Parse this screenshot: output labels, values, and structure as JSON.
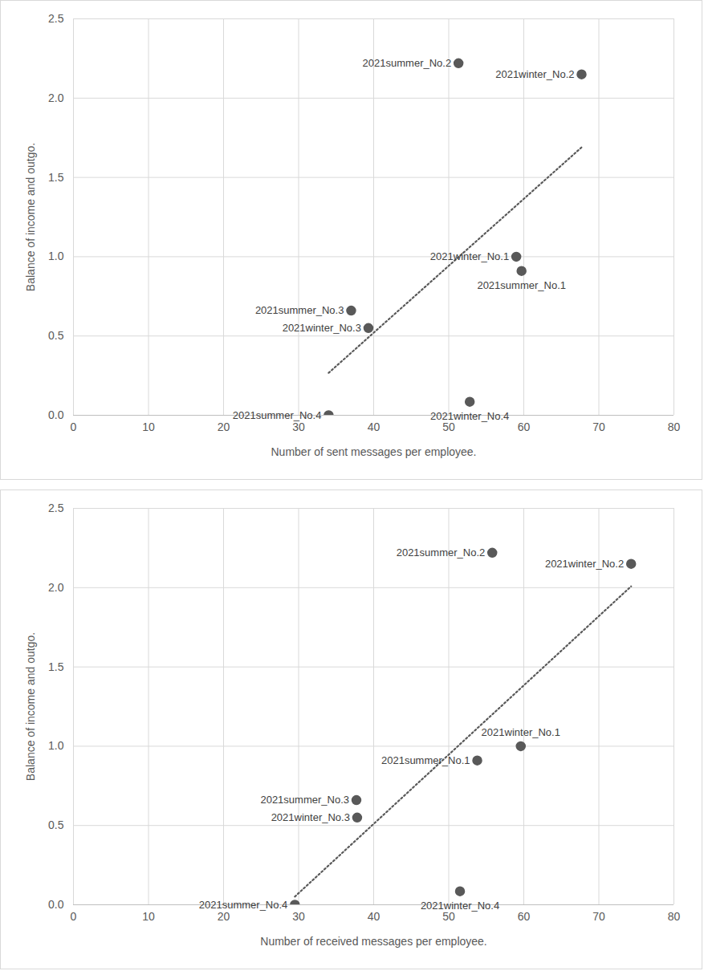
{
  "chart_data": [
    {
      "type": "scatter",
      "x_label": "Number of sent messages per employee.",
      "y_label": "Balance of income and outgo.",
      "labels": [
        "2021summer_No.2",
        "2021winter_No.2",
        "2021winter_No.1",
        "2021summer_No.1",
        "2021summer_No.3",
        "2021winter_No.3",
        "2021summer_No.4",
        "2021winter_No.4"
      ],
      "x": [
        51.3,
        67.7,
        59.0,
        59.7,
        37.0,
        39.3,
        34.0,
        52.8
      ],
      "values": [
        2.22,
        2.15,
        1.0,
        0.91,
        0.66,
        0.55,
        0.0,
        0.085
      ],
      "color": "#595959",
      "marker": "circle",
      "line_style": "dotted",
      "xlim": [
        0,
        80
      ],
      "xticks": [
        0,
        10,
        20,
        30,
        40,
        50,
        60,
        70,
        80
      ],
      "ylim": [
        0,
        2.5
      ],
      "yticks": [
        0,
        0.5,
        1,
        1.5,
        2,
        2.5
      ],
      "grid": true
    },
    {
      "type": "scatter",
      "x_label": "Number of received messages per employee.",
      "y_label": "Balance of income and outgo.",
      "labels": [
        "2021summer_No.2",
        "2021winter_No.2",
        "2021winter_No.1",
        "2021summer_No.1",
        "2021summer_No.3",
        "2021winter_No.3",
        "2021summer_No.4",
        "2021winter_No.4"
      ],
      "x": [
        55.8,
        74.3,
        59.6,
        53.8,
        37.7,
        37.8,
        29.5,
        51.5
      ],
      "values": [
        2.22,
        2.15,
        1.0,
        0.91,
        0.66,
        0.55,
        0.0,
        0.085
      ],
      "color": "#595959",
      "marker": "circle",
      "line_style": "dotted",
      "xlim": [
        0,
        80
      ],
      "xticks": [
        0,
        10,
        20,
        30,
        40,
        50,
        60,
        70,
        80
      ],
      "ylim": [
        0,
        2.5
      ],
      "yticks": [
        0,
        0.5,
        1,
        1.5,
        2,
        2.5
      ],
      "grid": true
    }
  ]
}
